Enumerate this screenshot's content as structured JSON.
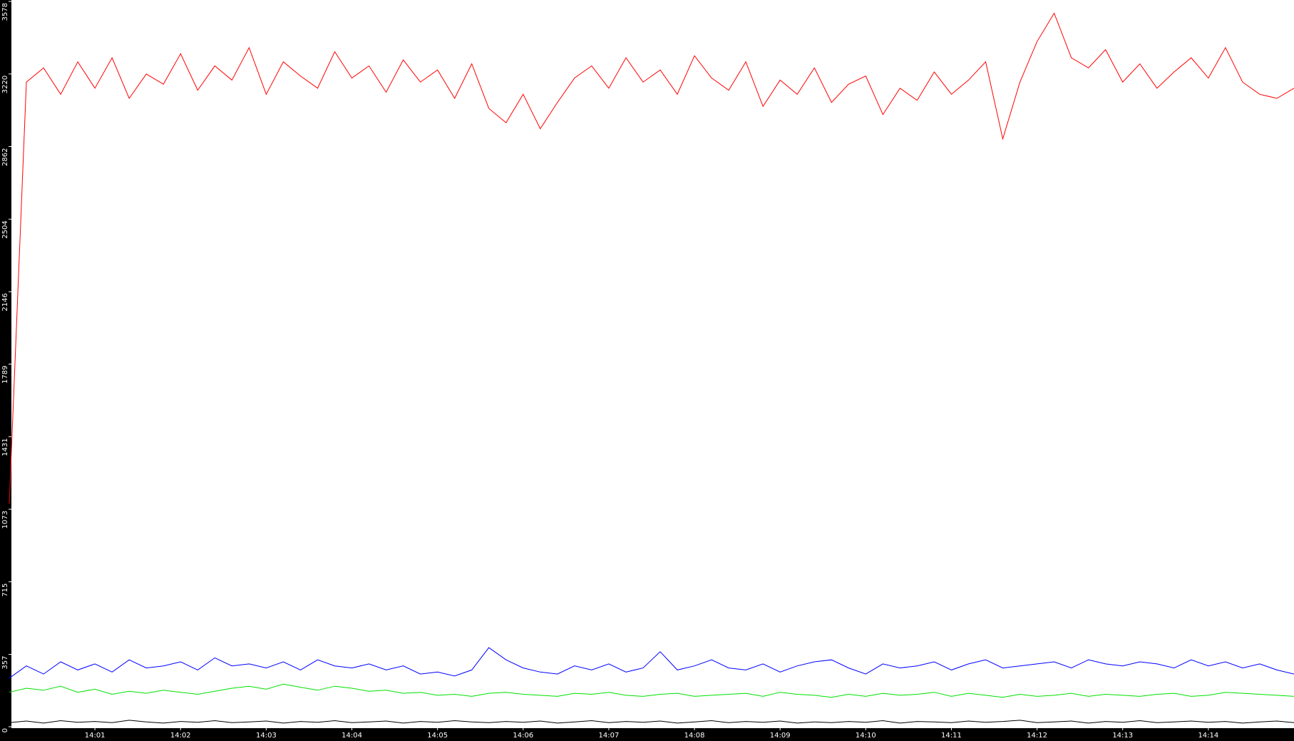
{
  "chart_data": {
    "type": "line",
    "x": [
      0,
      0.2,
      0.4,
      0.6,
      0.8,
      1,
      1.2,
      1.4,
      1.6,
      1.8,
      2,
      2.2,
      2.4,
      2.6,
      2.8,
      3,
      3.2,
      3.4,
      3.6,
      3.8,
      4,
      4.2,
      4.4,
      4.6,
      4.8,
      5,
      5.2,
      5.4,
      5.6,
      5.8,
      6,
      6.2,
      6.4,
      6.6,
      6.8,
      7,
      7.2,
      7.4,
      7.6,
      7.8,
      8,
      8.2,
      8.4,
      8.6,
      8.8,
      9,
      9.2,
      9.4,
      9.6,
      9.8,
      10,
      10.2,
      10.4,
      10.6,
      10.8,
      11,
      11.2,
      11.4,
      11.6,
      11.8,
      12,
      12.2,
      12.4,
      12.6,
      12.8,
      13,
      13.2,
      13.4,
      13.6,
      13.8,
      14,
      14.2,
      14.4,
      14.6,
      14.8,
      15
    ],
    "xlim": [
      0,
      15
    ],
    "xticks": [
      {
        "value": 1,
        "label": "14:01"
      },
      {
        "value": 2,
        "label": "14:02"
      },
      {
        "value": 3,
        "label": "14:03"
      },
      {
        "value": 4,
        "label": "14:04"
      },
      {
        "value": 5,
        "label": "14:05"
      },
      {
        "value": 6,
        "label": "14:06"
      },
      {
        "value": 7,
        "label": "14:07"
      },
      {
        "value": 8,
        "label": "14:08"
      },
      {
        "value": 9,
        "label": "14:09"
      },
      {
        "value": 10,
        "label": "14:10"
      },
      {
        "value": 11,
        "label": "14:11"
      },
      {
        "value": 12,
        "label": "14:12"
      },
      {
        "value": 13,
        "label": "14:13"
      },
      {
        "value": 14,
        "label": "14:14"
      }
    ],
    "ylim": [
      0,
      3578
    ],
    "yticks": [
      0,
      357,
      715,
      1073,
      1431,
      1789,
      2146,
      2504,
      2862,
      3220,
      3578
    ],
    "series": [
      {
        "color": "#ff0000",
        "values": [
          1100,
          3180,
          3250,
          3120,
          3280,
          3150,
          3300,
          3100,
          3220,
          3170,
          3320,
          3140,
          3260,
          3190,
          3350,
          3120,
          3280,
          3210,
          3150,
          3330,
          3200,
          3260,
          3130,
          3290,
          3180,
          3240,
          3100,
          3270,
          3050,
          2980,
          3120,
          2950,
          3080,
          3200,
          3260,
          3150,
          3300,
          3180,
          3240,
          3120,
          3310,
          3200,
          3140,
          3280,
          3060,
          3190,
          3120,
          3250,
          3080,
          3170,
          3210,
          3020,
          3150,
          3090,
          3230,
          3120,
          3190,
          3280,
          2900,
          3180,
          3380,
          3520,
          3300,
          3250,
          3340,
          3180,
          3270,
          3150,
          3230,
          3300,
          3200,
          3350,
          3180,
          3120,
          3100,
          3150
        ]
      },
      {
        "color": "#0000ff",
        "values": [
          240,
          300,
          260,
          320,
          280,
          310,
          270,
          330,
          290,
          300,
          320,
          280,
          340,
          300,
          310,
          290,
          320,
          280,
          330,
          300,
          290,
          310,
          280,
          300,
          260,
          270,
          250,
          280,
          390,
          330,
          290,
          270,
          260,
          300,
          280,
          310,
          270,
          290,
          370,
          280,
          300,
          330,
          290,
          280,
          310,
          270,
          300,
          320,
          330,
          290,
          260,
          310,
          290,
          300,
          320,
          280,
          310,
          330,
          290,
          300,
          310,
          320,
          290,
          330,
          310,
          300,
          320,
          310,
          290,
          330,
          300,
          320,
          290,
          310,
          280,
          260
        ]
      },
      {
        "color": "#00e000",
        "values": [
          170,
          190,
          180,
          200,
          170,
          185,
          160,
          175,
          165,
          180,
          170,
          160,
          175,
          190,
          200,
          185,
          210,
          195,
          180,
          200,
          190,
          175,
          180,
          165,
          170,
          155,
          160,
          150,
          165,
          170,
          160,
          155,
          150,
          165,
          160,
          170,
          155,
          150,
          160,
          165,
          150,
          155,
          160,
          165,
          150,
          170,
          160,
          155,
          145,
          160,
          150,
          165,
          155,
          160,
          170,
          150,
          165,
          155,
          145,
          160,
          150,
          155,
          165,
          150,
          160,
          155,
          150,
          160,
          165,
          150,
          155,
          170,
          165,
          160,
          155,
          150
        ]
      },
      {
        "color": "#000000",
        "values": [
          20,
          28,
          18,
          30,
          22,
          26,
          20,
          32,
          24,
          18,
          26,
          22,
          30,
          20,
          24,
          28,
          18,
          26,
          22,
          30,
          20,
          24,
          28,
          18,
          26,
          22,
          30,
          24,
          20,
          26,
          22,
          28,
          18,
          24,
          30,
          20,
          26,
          22,
          28,
          18,
          24,
          30,
          20,
          26,
          22,
          28,
          18,
          24,
          20,
          26,
          22,
          30,
          18,
          26,
          24,
          20,
          28,
          22,
          26,
          32,
          20,
          24,
          28,
          18,
          26,
          22,
          30,
          20,
          24,
          28,
          22,
          26,
          18,
          24,
          28,
          20
        ]
      }
    ]
  }
}
